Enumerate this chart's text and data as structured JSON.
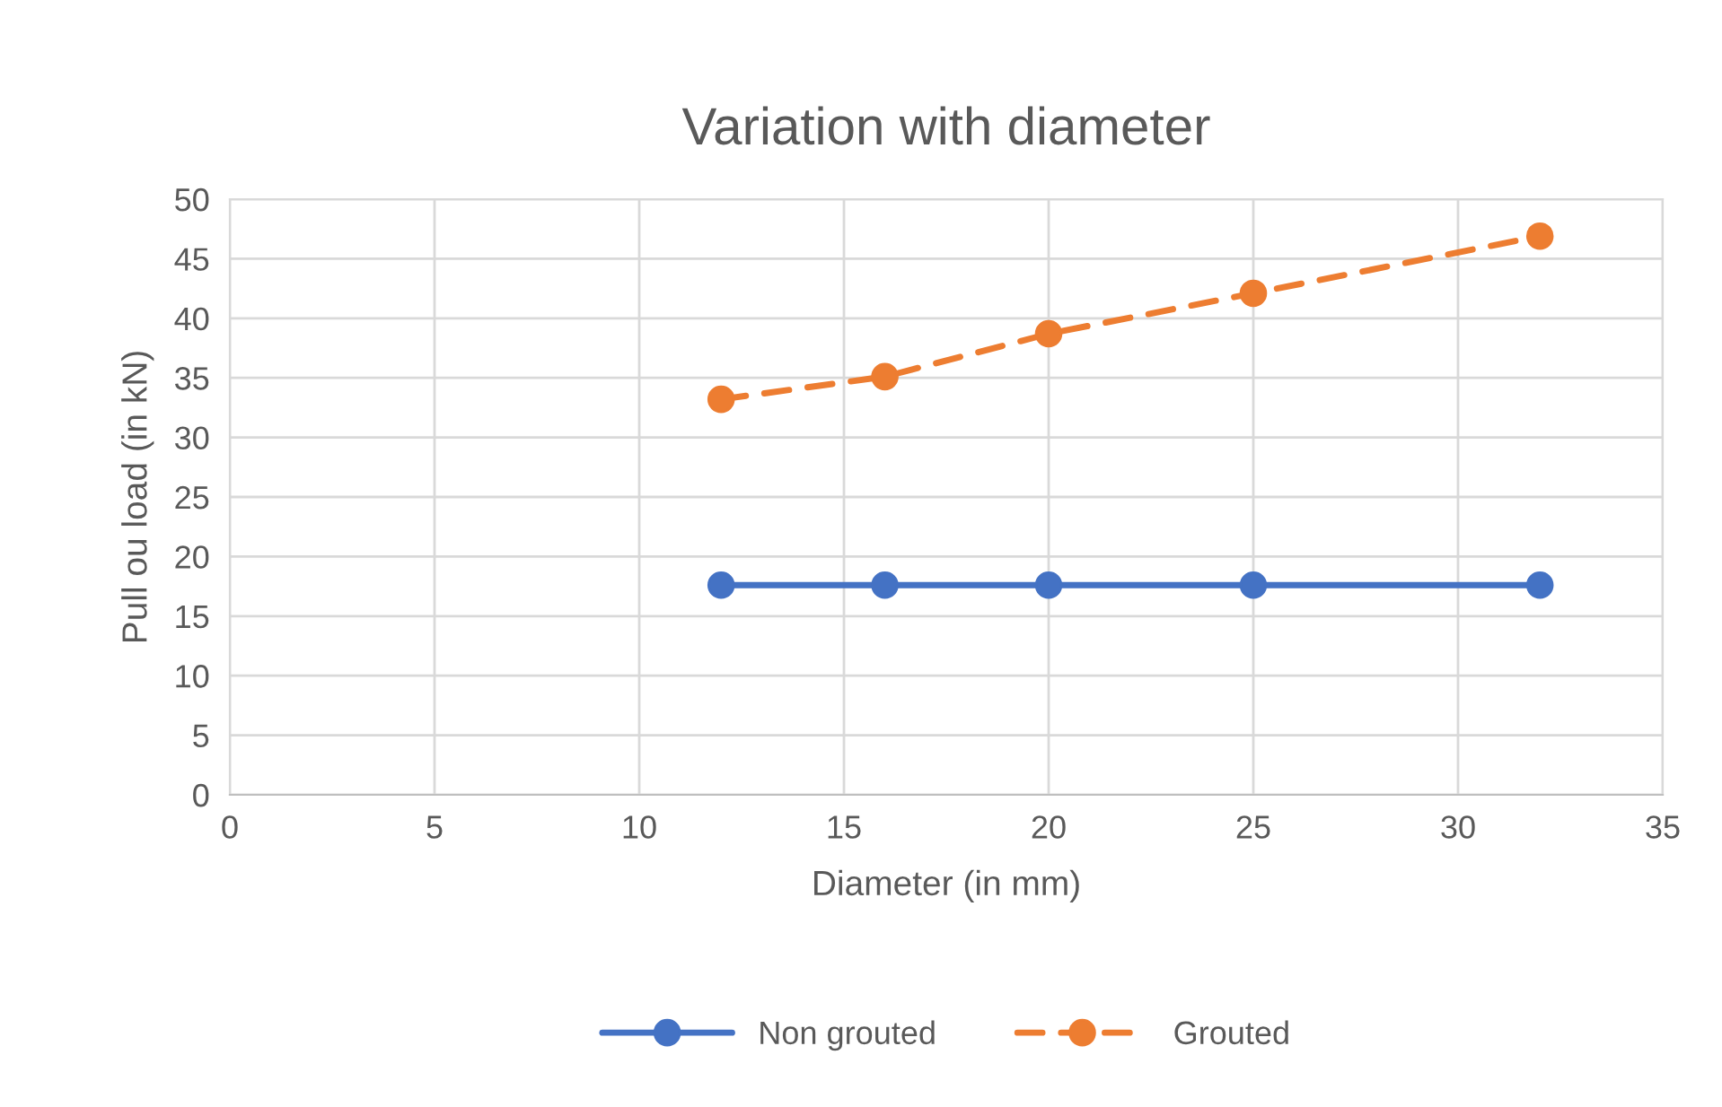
{
  "chart_data": {
    "type": "line",
    "title": "Variation with diameter",
    "xlabel": "Diameter (in mm)",
    "ylabel": "Pull ou load (in kN)",
    "x": [
      12,
      16,
      20,
      25,
      32
    ],
    "series": [
      {
        "name": "Non grouted",
        "color": "#4472c4",
        "line_style": "solid",
        "values": [
          17.6,
          17.6,
          17.6,
          17.6,
          17.6
        ]
      },
      {
        "name": "Grouted",
        "color": "#ed7d31",
        "line_style": "dashed",
        "values": [
          33.2,
          35.1,
          38.7,
          42.1,
          46.9
        ]
      }
    ],
    "marker": "circle",
    "xlim": [
      0,
      35
    ],
    "xticks": [
      0,
      5,
      10,
      15,
      20,
      25,
      30,
      35
    ],
    "ylim": [
      0,
      50
    ],
    "yticks": [
      0,
      5,
      10,
      15,
      20,
      25,
      30,
      35,
      40,
      45,
      50
    ],
    "grid": true,
    "legend": "bottom"
  }
}
